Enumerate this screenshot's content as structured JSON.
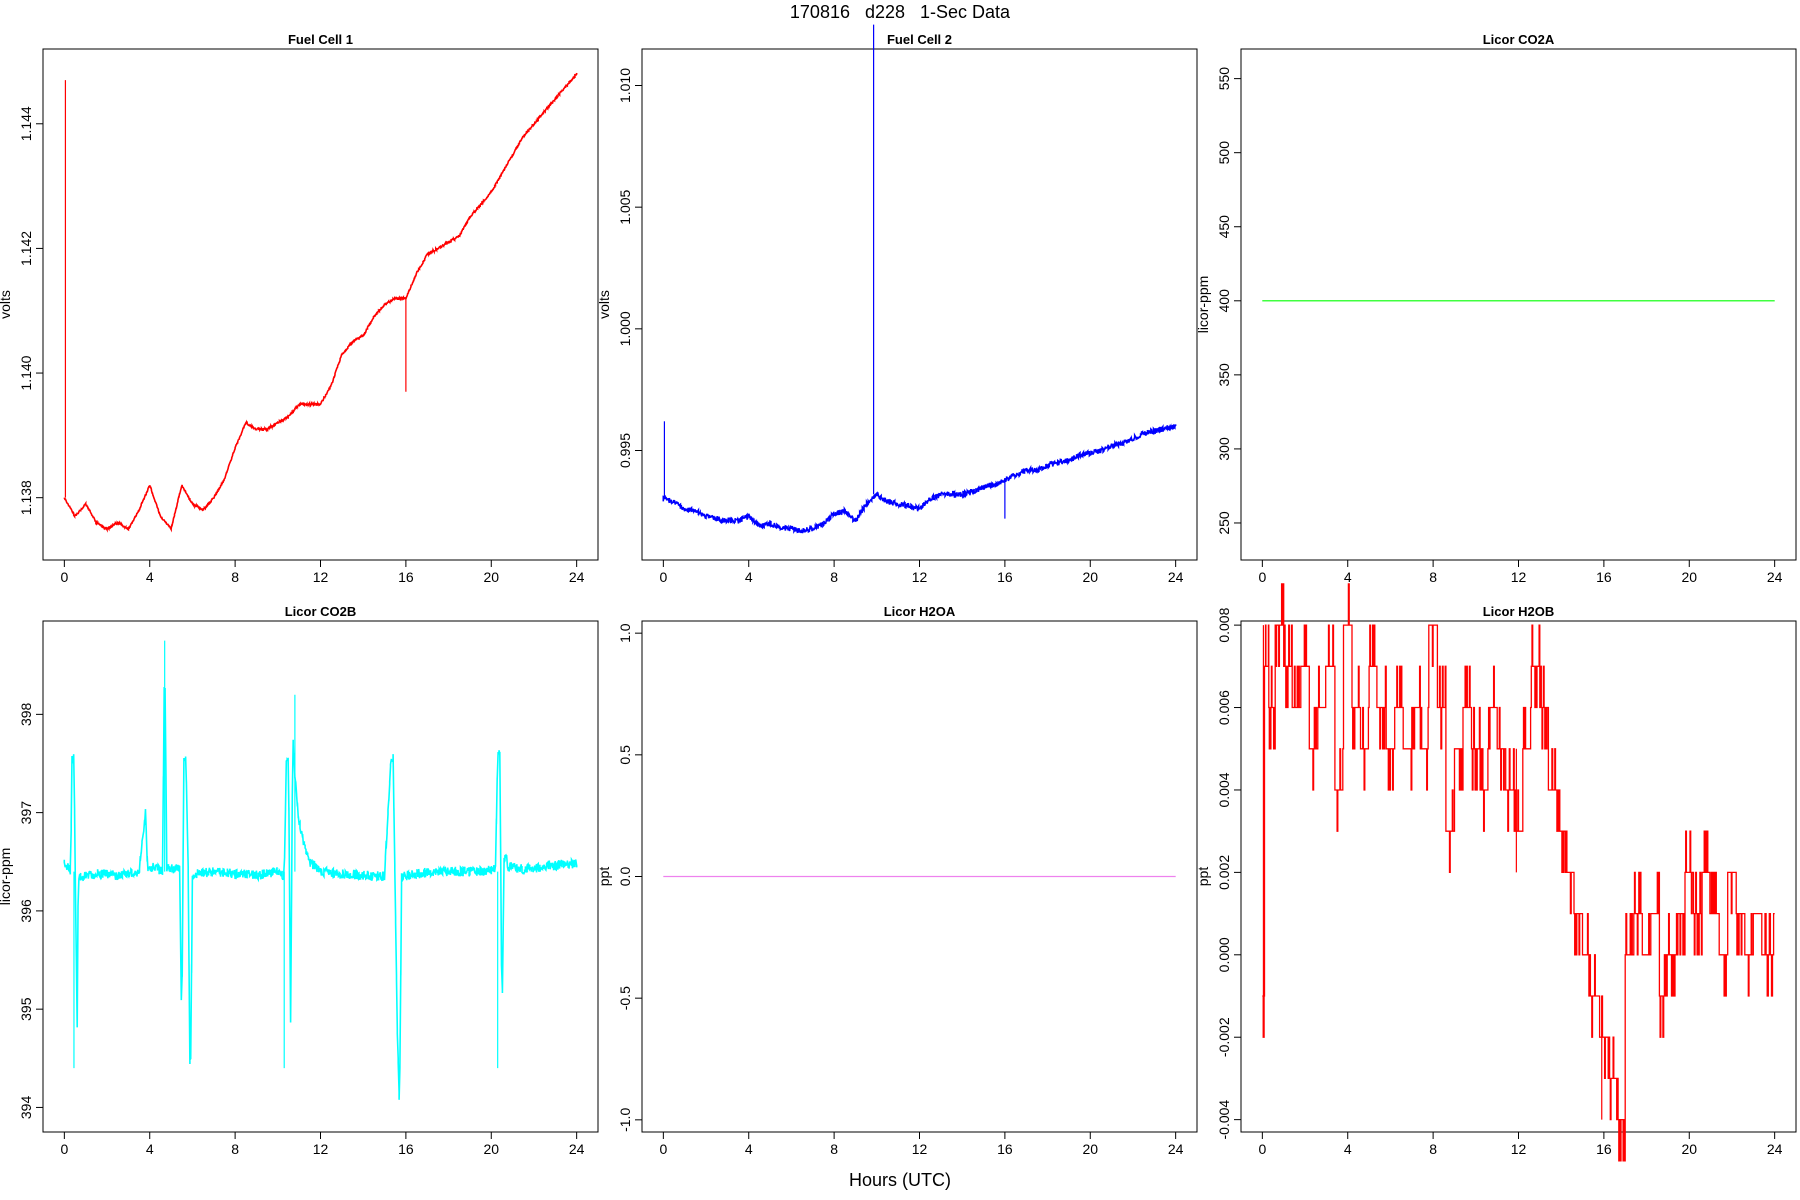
{
  "figure": {
    "title": "170816   d228   1-Sec Data",
    "xlabel": "Hours (UTC)"
  },
  "chart_data": [
    {
      "type": "line",
      "title": "Fuel Cell 1",
      "xlabel": "",
      "ylabel": "volts",
      "color": "#ff0000",
      "xlim": [
        -1,
        25
      ],
      "ylim": [
        1.137,
        1.1452
      ],
      "xticks": [
        0,
        4,
        8,
        12,
        16,
        20,
        24
      ],
      "yticks": [
        1.138,
        1.14,
        1.142,
        1.144
      ],
      "ytick_decimals": 3,
      "band": 0.18,
      "series": [
        {
          "x": [
            0,
            0.5,
            1,
            1.5,
            2,
            2.5,
            3,
            3.5,
            4,
            4.5,
            5,
            5.5,
            6,
            6.5,
            7,
            7.5,
            8,
            8.5,
            9,
            9.5,
            10,
            10.5,
            11,
            11.5,
            12,
            12.5,
            13,
            13.5,
            14,
            14.5,
            15,
            15.5,
            16,
            16.5,
            17,
            17.5,
            18,
            18.5,
            19,
            19.5,
            20,
            20.5,
            21,
            21.5,
            22,
            22.5,
            23,
            23.5,
            24
          ],
          "y": [
            1.138,
            1.1377,
            1.1379,
            1.1376,
            1.1375,
            1.1376,
            1.1375,
            1.1378,
            1.1382,
            1.1377,
            1.1375,
            1.1382,
            1.1379,
            1.1378,
            1.138,
            1.1383,
            1.1388,
            1.1392,
            1.1391,
            1.1391,
            1.1392,
            1.1393,
            1.1395,
            1.1395,
            1.1395,
            1.1398,
            1.1403,
            1.1405,
            1.1406,
            1.1409,
            1.1411,
            1.1412,
            1.1412,
            1.1416,
            1.1419,
            1.142,
            1.1421,
            1.1422,
            1.1425,
            1.1427,
            1.1429,
            1.1432,
            1.1435,
            1.1438,
            1.144,
            1.1442,
            1.1444,
            1.1446,
            1.1448
          ]
        }
      ],
      "spikes": [
        {
          "x": 0.05,
          "from": 1.138,
          "to": 1.1447
        },
        {
          "x": 16.0,
          "from": 1.1412,
          "to": 1.1397
        }
      ]
    },
    {
      "type": "line",
      "title": "Fuel Cell 2",
      "xlabel": "",
      "ylabel": "volts",
      "color": "#0000ff",
      "xlim": [
        -1,
        25
      ],
      "ylim": [
        0.9905,
        1.0115
      ],
      "xticks": [
        0,
        4,
        8,
        12,
        16,
        20,
        24
      ],
      "yticks": [
        0.995,
        1.0,
        1.005,
        1.01
      ],
      "ytick_decimals": 3,
      "band": 0.45,
      "series": [
        {
          "x": [
            0,
            0.5,
            1,
            1.5,
            2,
            2.5,
            3,
            3.5,
            4,
            4.5,
            5,
            5.5,
            6,
            6.5,
            7,
            7.5,
            8,
            8.5,
            9,
            9.5,
            10,
            10.5,
            11,
            11.5,
            12,
            12.5,
            13,
            13.5,
            14,
            14.5,
            15,
            15.5,
            16,
            16.5,
            17,
            17.5,
            18,
            18.5,
            19,
            19.5,
            20,
            20.5,
            21,
            21.5,
            22,
            22.5,
            23,
            23.5,
            24
          ],
          "y": [
            0.993,
            0.9929,
            0.9926,
            0.9925,
            0.9923,
            0.9922,
            0.9921,
            0.9921,
            0.9923,
            0.9919,
            0.992,
            0.9918,
            0.9918,
            0.9917,
            0.9918,
            0.992,
            0.9924,
            0.9925,
            0.9921,
            0.9928,
            0.9932,
            0.9929,
            0.9928,
            0.9927,
            0.9926,
            0.993,
            0.9932,
            0.9932,
            0.9932,
            0.9933,
            0.9935,
            0.9936,
            0.9938,
            0.994,
            0.9942,
            0.9942,
            0.9944,
            0.9945,
            0.9946,
            0.9948,
            0.9949,
            0.995,
            0.9952,
            0.9953,
            0.9955,
            0.9957,
            0.9958,
            0.9959,
            0.996
          ]
        }
      ],
      "spikes": [
        {
          "x": 0.05,
          "from": 0.993,
          "to": 0.9962
        },
        {
          "x": 9.85,
          "from": 0.9932,
          "to": 1.0125
        },
        {
          "x": 16.0,
          "from": 0.9938,
          "to": 0.9922
        }
      ]
    },
    {
      "type": "line",
      "title": "Licor CO2A",
      "xlabel": "",
      "ylabel": "licor-ppm",
      "color": "#00ff00",
      "xlim": [
        -1,
        25
      ],
      "ylim": [
        225,
        570
      ],
      "xticks": [
        0,
        4,
        8,
        12,
        16,
        20,
        24
      ],
      "yticks": [
        250,
        300,
        350,
        400,
        450,
        500,
        550
      ],
      "ytick_decimals": 0,
      "band": 0,
      "series": [
        {
          "x": [
            0,
            24
          ],
          "y": [
            400,
            400
          ]
        }
      ],
      "spikes": []
    },
    {
      "type": "line",
      "title": "Licor CO2B",
      "xlabel": "",
      "ylabel": "licor-ppm",
      "color": "#00ffff",
      "xlim": [
        -1,
        25
      ],
      "ylim": [
        393.75,
        398.95
      ],
      "xticks": [
        0,
        4,
        8,
        12,
        16,
        20,
        24
      ],
      "yticks": [
        394,
        395,
        396,
        397,
        398
      ],
      "ytick_decimals": 0,
      "band": 0.8,
      "series": [
        {
          "x": [
            0,
            0.3,
            0.35,
            0.45,
            0.6,
            0.65,
            0.8,
            1.5,
            2.5,
            3.5,
            3.8,
            3.9,
            4.2,
            4.6,
            4.7,
            4.8,
            5.4,
            5.5,
            5.6,
            5.7,
            5.8,
            5.9,
            6.0,
            6.1,
            7.0,
            8.0,
            9.0,
            10.0,
            10.3,
            10.4,
            10.5,
            10.6,
            10.7,
            10.8,
            10.9,
            11.0,
            11.2,
            11.5,
            12.0,
            13.0,
            14.0,
            15.0,
            15.3,
            15.4,
            15.6,
            15.7,
            15.8,
            16.5,
            17.5,
            18.5,
            19.5,
            20.2,
            20.3,
            20.4,
            20.5,
            20.6,
            20.7,
            20.8,
            21.5,
            22.5,
            23.5,
            24
          ],
          "y": [
            396.5,
            396.4,
            397.55,
            397.55,
            394.8,
            396.35,
            396.35,
            396.38,
            396.36,
            396.4,
            397.0,
            396.42,
            396.45,
            396.4,
            398.7,
            396.45,
            396.42,
            394.8,
            397.55,
            397.55,
            396.4,
            394.0,
            396.35,
            396.38,
            396.4,
            396.38,
            396.36,
            396.4,
            396.35,
            397.55,
            397.55,
            394.85,
            397.8,
            397.4,
            397.1,
            396.9,
            396.7,
            396.5,
            396.4,
            396.38,
            396.36,
            396.35,
            397.55,
            397.55,
            394.8,
            393.95,
            396.35,
            396.38,
            396.4,
            396.4,
            396.4,
            396.42,
            397.6,
            397.6,
            394.85,
            396.5,
            396.55,
            396.45,
            396.42,
            396.45,
            396.48,
            396.48
          ]
        }
      ],
      "spikes": [
        {
          "x": 4.7,
          "from": 396.4,
          "to": 398.75
        },
        {
          "x": 10.8,
          "from": 396.4,
          "to": 398.2
        },
        {
          "x": 0.45,
          "from": 396.4,
          "to": 394.4
        },
        {
          "x": 10.3,
          "from": 396.4,
          "to": 394.4
        },
        {
          "x": 20.3,
          "from": 396.4,
          "to": 394.4
        }
      ]
    },
    {
      "type": "line",
      "title": "Licor H2OA",
      "xlabel": "",
      "ylabel": "ppt",
      "color": "#ee82ee",
      "xlim": [
        -1,
        25
      ],
      "ylim": [
        -1.05,
        1.05
      ],
      "xticks": [
        0,
        4,
        8,
        12,
        16,
        20,
        24
      ],
      "yticks": [
        -1.0,
        -0.5,
        0.0,
        0.5,
        1.0
      ],
      "ytick_decimals": 1,
      "band": 0,
      "series": [
        {
          "x": [
            0,
            24
          ],
          "y": [
            0,
            0
          ]
        }
      ],
      "spikes": []
    },
    {
      "type": "line",
      "title": "Licor H2OB",
      "xlabel": "",
      "ylabel": "ppt",
      "color": "#ff0000",
      "xlim": [
        -1,
        25
      ],
      "ylim": [
        -0.0043,
        0.0081
      ],
      "xticks": [
        0,
        4,
        8,
        12,
        16,
        20,
        24
      ],
      "yticks": [
        -0.004,
        -0.002,
        0.0,
        0.002,
        0.004,
        0.006,
        0.008
      ],
      "ytick_decimals": 3,
      "band": 0,
      "step": true,
      "series": [
        {
          "x": [
            0,
            0.1,
            0.3,
            0.6,
            1.0,
            1.4,
            1.8,
            2.2,
            2.6,
            3.0,
            3.4,
            3.8,
            4.2,
            4.6,
            5.0,
            5.4,
            5.8,
            6.2,
            6.6,
            7.0,
            7.4,
            7.8,
            8.2,
            8.6,
            9.0,
            9.4,
            9.8,
            10.2,
            10.6,
            11.0,
            11.4,
            11.8,
            12.2,
            12.6,
            13.0,
            13.4,
            13.8,
            14.2,
            14.6,
            15.0,
            15.4,
            15.8,
            16.2,
            16.6,
            17.0,
            17.4,
            17.8,
            18.2,
            18.6,
            19.0,
            19.4,
            19.8,
            20.2,
            20.6,
            21.0,
            21.4,
            21.8,
            22.2,
            22.6,
            23.0,
            23.4,
            24
          ],
          "y": [
            -0.001,
            0.007,
            0.006,
            0.008,
            0.007,
            0.006,
            0.007,
            0.005,
            0.006,
            0.007,
            0.004,
            0.008,
            0.006,
            0.005,
            0.007,
            0.006,
            0.005,
            0.006,
            0.005,
            0.006,
            0.005,
            0.008,
            0.006,
            0.003,
            0.005,
            0.006,
            0.005,
            0.004,
            0.006,
            0.005,
            0.004,
            0.003,
            0.005,
            0.007,
            0.006,
            0.004,
            0.003,
            0.002,
            0.001,
            0.0,
            -0.001,
            -0.002,
            -0.003,
            -0.004,
            0.0,
            0.001,
            0.0,
            0.001,
            -0.001,
            0.0,
            0.001,
            0.002,
            0.001,
            0.002,
            0.001,
            0.0,
            0.002,
            0.001,
            0.0,
            0.001,
            0.0,
            0.001
          ]
        }
      ],
      "spikes": [
        {
          "x": 0.05,
          "from": -0.001,
          "to": 0.008
        },
        {
          "x": 11.9,
          "from": 0.005,
          "to": 0.002
        },
        {
          "x": 15.9,
          "from": -0.001,
          "to": -0.004
        }
      ]
    }
  ]
}
